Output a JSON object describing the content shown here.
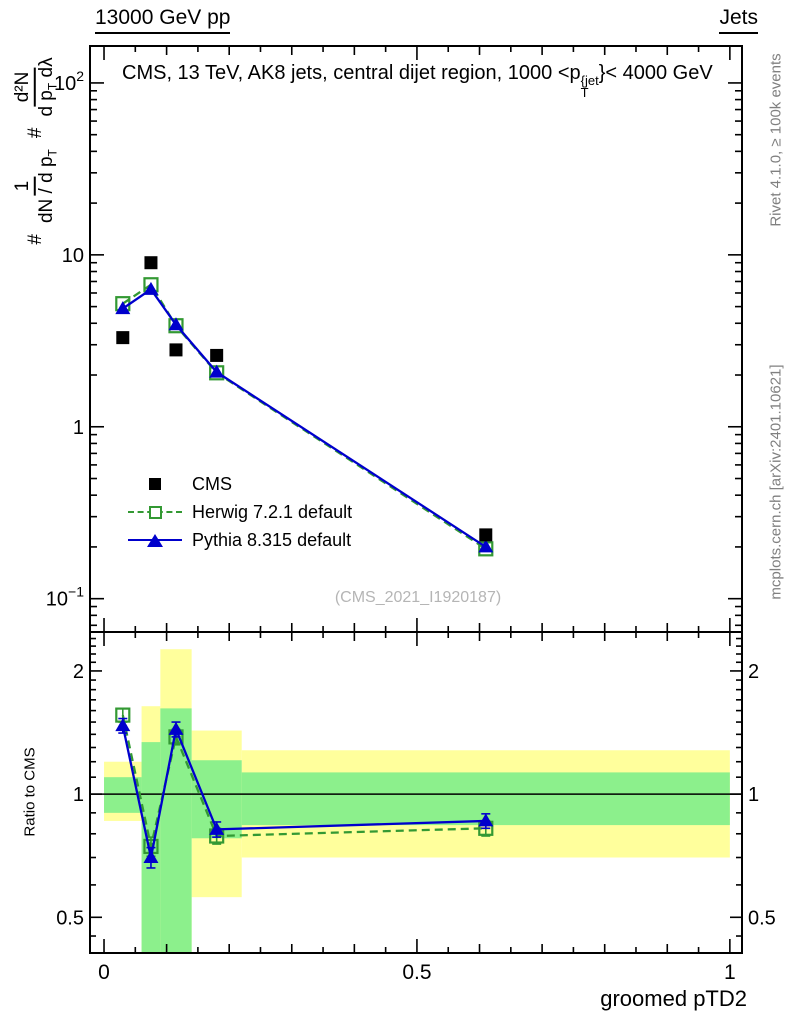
{
  "header": {
    "left": "13000 GeV pp",
    "right": "Jets"
  },
  "title": {
    "prefix": "CMS, 13 TeV, AK8 jets, central dijet region, 1000 <p",
    "sup": "{jet",
    "sub": "T",
    "suffix": "}< 4000 GeV"
  },
  "y_axis_title": {
    "hash1": "#",
    "frac1_num": "1",
    "frac1_den": "dN / d p",
    "frac1_den_sub": "T",
    "hash2": "#",
    "frac2_num": "d²N",
    "frac2_den_a": "d p",
    "frac2_den_a_sub": "T",
    "frac2_den_b": "dλ"
  },
  "ratio_y_label": "Ratio to CMS",
  "x_axis_label": "groomed pTD2",
  "watermark": "(CMS_2021_I1920187)",
  "side_notes": {
    "top": "Rivet 4.1.0, ≥ 100k events",
    "bottom": "mcplots.cern.ch [arXiv:2401.10621]"
  },
  "legend": {
    "items": [
      {
        "label": "CMS",
        "marker": "filled-square",
        "line": "none",
        "color": "#000000"
      },
      {
        "label": "Herwig 7.2.1 default",
        "marker": "open-square",
        "line": "dashed",
        "color": "#339933"
      },
      {
        "label": "Pythia 8.315 default",
        "marker": "filled-triangle",
        "line": "solid",
        "color": "#0000cc"
      }
    ]
  },
  "chart_data": [
    {
      "type": "line",
      "panel": "main",
      "title": "CMS, 13 TeV, AK8 jets, central dijet region, 1000 <pT{jet}< 4000 GeV",
      "xlabel": "groomed pTD2",
      "ylabel": "# 1/(dN/dpT) # d2N/(dpT dlambda)",
      "yscale": "log",
      "xlim": [
        -0.0224,
        1.0194
      ],
      "ylim": [
        0.064,
        164
      ],
      "x_centers": [
        0.03,
        0.075,
        0.115,
        0.18,
        0.61
      ],
      "series": [
        {
          "name": "CMS",
          "color": "#000000",
          "marker": "filled-square",
          "line": "none",
          "values": [
            3.3,
            9.0,
            2.8,
            2.6,
            0.235
          ]
        },
        {
          "name": "Herwig 7.2.1 default",
          "color": "#339933",
          "marker": "open-square",
          "line": "dashed",
          "values": [
            5.2,
            6.7,
            3.87,
            2.06,
            0.195
          ]
        },
        {
          "name": "Pythia 8.315 default",
          "color": "#0000cc",
          "marker": "filled-triangle",
          "line": "solid",
          "values": [
            4.87,
            6.3,
            3.92,
            2.08,
            0.2
          ]
        }
      ],
      "yticks": [
        {
          "v": 100,
          "base": "10",
          "exp": "2"
        },
        {
          "v": 10,
          "base": "10",
          "exp": ""
        },
        {
          "v": 1,
          "base": "1",
          "exp": ""
        },
        {
          "v": 0.1,
          "base": "10",
          "exp": "−1"
        }
      ],
      "xticks_major": [
        0,
        0.5,
        1
      ],
      "xtick_labels": [
        "0",
        "0.5",
        "1"
      ]
    },
    {
      "type": "ratio",
      "panel": "bottom",
      "ylabel": "Ratio to CMS",
      "yscale": "log",
      "ylim": [
        0.409,
        2.49
      ],
      "reference_line": 1,
      "bin_edges": [
        0.0,
        0.06,
        0.09,
        0.14,
        0.22,
        1.0
      ],
      "x_centers": [
        0.03,
        0.075,
        0.115,
        0.18,
        0.61
      ],
      "bands": [
        {
          "name": "total-uncertainty",
          "color": "#ffff9c",
          "ranges": [
            [
              0.86,
              1.2
            ],
            [
              0.4,
              1.64
            ],
            [
              0.4,
              2.26
            ],
            [
              0.56,
              1.43
            ],
            [
              0.7,
              1.28
            ]
          ]
        },
        {
          "name": "stat-uncertainty",
          "color": "#8cf08c",
          "ranges": [
            [
              0.9,
              1.1
            ],
            [
              0.4,
              1.34
            ],
            [
              0.4,
              1.62
            ],
            [
              0.78,
              1.21
            ],
            [
              0.84,
              1.13
            ]
          ]
        }
      ],
      "series": [
        {
          "name": "Herwig 7.2.1 default",
          "color": "#339933",
          "marker": "open-square",
          "line": "dashed",
          "values": [
            1.56,
            0.745,
            1.38,
            0.79,
            0.825
          ],
          "errors": [
            0.06,
            0.04,
            0.06,
            0.035,
            0.035
          ]
        },
        {
          "name": "Pythia 8.315 default",
          "color": "#0000cc",
          "marker": "filled-triangle",
          "line": "solid",
          "values": [
            1.47,
            0.7,
            1.44,
            0.82,
            0.86
          ],
          "errors": [
            0.06,
            0.04,
            0.06,
            0.035,
            0.035
          ]
        }
      ],
      "yticks": [
        {
          "v": 2,
          "label": "2"
        },
        {
          "v": 1,
          "label": "1"
        },
        {
          "v": 0.5,
          "label": "0.5"
        }
      ]
    }
  ]
}
